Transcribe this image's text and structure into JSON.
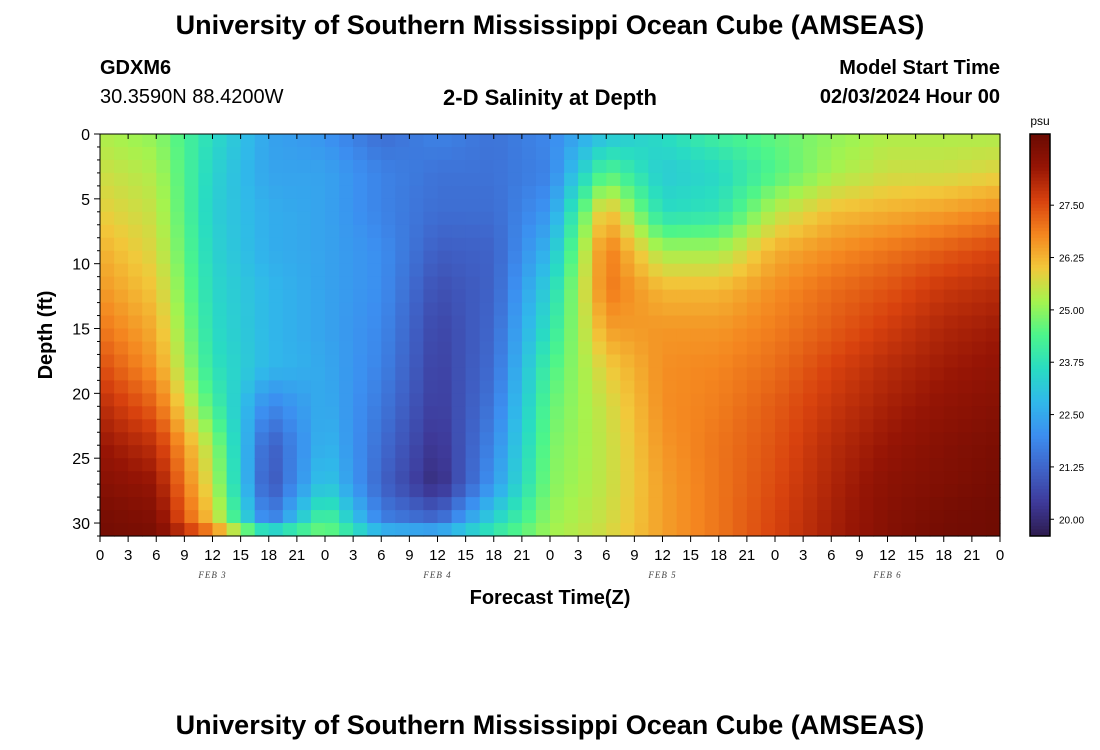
{
  "header": {
    "title": "University of Southern Mississippi Ocean Cube (AMSEAS)",
    "station": "GDXM6",
    "coords": "30.3590N  88.4200W",
    "subtitle": "2-D Salinity at Depth",
    "start_label": "Model Start Time",
    "start_value": "02/03/2024 Hour 00"
  },
  "footer": {
    "title": "University of Southern Mississippi Ocean Cube (AMSEAS)"
  },
  "chart_data": {
    "type": "heatmap",
    "title": "2-D Salinity at Depth",
    "xlabel": "Forecast Time(Z)",
    "ylabel": "Depth (ft)",
    "x_tick_labels": [
      "0",
      "3",
      "6",
      "9",
      "12",
      "15",
      "18",
      "21",
      "0",
      "3",
      "6",
      "9",
      "12",
      "15",
      "18",
      "21",
      "0",
      "3",
      "6",
      "9",
      "12",
      "15",
      "18",
      "21",
      "0",
      "3",
      "6",
      "9",
      "12",
      "15",
      "18",
      "21",
      "0"
    ],
    "day_labels": [
      "FEB 3",
      "FEB 4",
      "FEB 5",
      "FEB 6"
    ],
    "y_ticks": [
      0,
      5,
      10,
      15,
      20,
      25,
      30
    ],
    "xlim": [
      0,
      96
    ],
    "ylim": [
      0,
      31
    ],
    "y_inverted": true,
    "colorbar": {
      "unit": "psu",
      "ticks": [
        20.0,
        21.25,
        22.5,
        23.75,
        25.0,
        26.25,
        27.5
      ],
      "tick_labels": [
        "20.00",
        "21.25",
        "22.50",
        "23.75",
        "25.00",
        "26.25",
        "27.50"
      ],
      "range": [
        19.6,
        29.2
      ],
      "colors": [
        "#2d1b4e",
        "#3e3a9a",
        "#3f63c8",
        "#3c8ef0",
        "#30b8ea",
        "#29dcc2",
        "#4cf58b",
        "#a5f34e",
        "#f2c83a",
        "#f4861f",
        "#d8420e",
        "#961505",
        "#6a0a02"
      ]
    },
    "salinity_psu": {
      "depth_ft": [
        0,
        3,
        6,
        9,
        12,
        15,
        18,
        21,
        24,
        27,
        30,
        31
      ],
      "time_hours": [
        0,
        6,
        12,
        18,
        24,
        30,
        36,
        42,
        48,
        54,
        60,
        66,
        72,
        78,
        84,
        90,
        96
      ],
      "values": [
        [
          25.3,
          25.0,
          23.6,
          22.4,
          22.1,
          21.4,
          21.8,
          21.5,
          21.9,
          23.0,
          23.6,
          24.2,
          24.6,
          25.0,
          25.3,
          25.3,
          25.3
        ],
        [
          25.6,
          25.3,
          23.4,
          22.4,
          22.4,
          21.8,
          21.5,
          21.5,
          21.8,
          24.5,
          23.2,
          23.5,
          24.4,
          25.2,
          25.6,
          25.6,
          25.8
        ],
        [
          25.9,
          25.5,
          23.3,
          22.6,
          22.4,
          21.8,
          21.4,
          21.4,
          22.2,
          26.3,
          23.6,
          23.8,
          25.4,
          26.1,
          26.3,
          26.5,
          26.8
        ],
        [
          26.3,
          25.7,
          23.4,
          22.6,
          22.4,
          22.0,
          21.1,
          21.2,
          22.8,
          27.0,
          25.2,
          25.2,
          26.3,
          26.7,
          27.0,
          27.3,
          27.6
        ],
        [
          26.6,
          26.0,
          23.5,
          22.8,
          22.4,
          22.0,
          20.8,
          21.2,
          23.4,
          27.0,
          26.2,
          26.2,
          26.7,
          27.1,
          27.4,
          27.8,
          28.0
        ],
        [
          27.0,
          26.3,
          23.6,
          22.8,
          22.4,
          21.9,
          20.6,
          21.3,
          23.8,
          26.5,
          26.6,
          26.6,
          26.9,
          27.3,
          27.7,
          28.1,
          28.3
        ],
        [
          27.5,
          26.6,
          23.8,
          22.8,
          22.5,
          21.8,
          20.5,
          21.4,
          24.3,
          25.9,
          26.7,
          26.8,
          27.1,
          27.6,
          28.0,
          28.3,
          28.5
        ],
        [
          28.0,
          27.2,
          24.3,
          21.8,
          22.6,
          21.6,
          20.4,
          21.6,
          24.6,
          25.6,
          26.7,
          26.9,
          27.3,
          27.8,
          28.2,
          28.5,
          28.7
        ],
        [
          28.4,
          27.9,
          25.2,
          21.0,
          22.8,
          21.4,
          20.2,
          21.9,
          24.8,
          25.5,
          26.6,
          27.0,
          27.4,
          28.0,
          28.4,
          28.7,
          28.9
        ],
        [
          28.7,
          28.4,
          25.5,
          20.8,
          23.2,
          21.2,
          20.0,
          22.2,
          24.9,
          25.5,
          26.5,
          27.0,
          27.5,
          28.1,
          28.6,
          28.8,
          29.0
        ],
        [
          29.0,
          28.8,
          26.0,
          21.6,
          24.6,
          21.8,
          21.4,
          23.5,
          25.1,
          25.6,
          26.5,
          27.0,
          27.6,
          28.2,
          28.7,
          29.0,
          29.1
        ],
        [
          29.0,
          28.9,
          27.5,
          24.9,
          24.9,
          23.4,
          23.2,
          24.2,
          25.2,
          25.7,
          26.5,
          27.0,
          27.6,
          28.2,
          28.7,
          29.0,
          29.1
        ]
      ]
    }
  }
}
